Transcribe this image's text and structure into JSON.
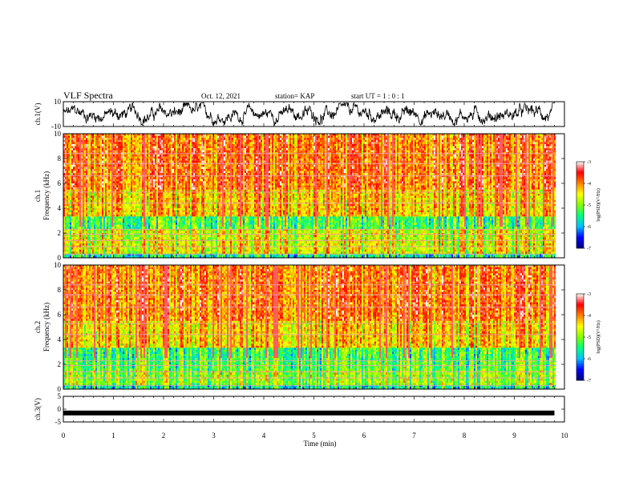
{
  "header": {
    "title": "VLF Spectra",
    "date": "Oct. 12, 2021",
    "station": "station= KAP",
    "start_ut": "start UT =  1 : 0  : 1"
  },
  "chart_data": [
    {
      "type": "line",
      "panel": "ch1-waveform",
      "ylabel": "ch.1(V)",
      "ylim": [
        -10,
        10
      ],
      "yticks": [
        "10",
        "-10"
      ],
      "xlim": [
        0,
        10
      ],
      "data_extent_min": [
        0,
        9.8
      ],
      "color": "#000000"
    },
    {
      "type": "heatmap",
      "panel": "ch1-spectrogram",
      "ylabel": "ch.1\nFrequency (kHz)",
      "ylim": [
        0,
        10
      ],
      "yticks": [
        "0",
        "2",
        "4",
        "6",
        "8",
        "10"
      ],
      "xlim": [
        0,
        10
      ],
      "data_extent_min": [
        0,
        9.8
      ],
      "colorbar": {
        "label": "log(PSD)(V²/Hz)",
        "ticks": [
          "-3",
          "-4",
          "-5",
          "-6",
          "-7"
        ],
        "range": [
          -7,
          -3
        ]
      }
    },
    {
      "type": "heatmap",
      "panel": "ch2-spectrogram",
      "ylabel": "ch.2\nFrequency (kHz)",
      "ylim": [
        0,
        10
      ],
      "yticks": [
        "0",
        "2",
        "4",
        "6",
        "8",
        "10"
      ],
      "xlim": [
        0,
        10
      ],
      "data_extent_min": [
        0,
        9.8
      ],
      "colorbar": {
        "label": "log(PSD)(V²/Hz)",
        "ticks": [
          "-3",
          "-4",
          "-5",
          "-6",
          "-7"
        ],
        "range": [
          -7,
          -3
        ]
      }
    },
    {
      "type": "line",
      "panel": "ch3-waveform",
      "ylabel": "ch.3(V)",
      "ylim": [
        -5,
        5
      ],
      "yticks": [
        "5",
        "0",
        "-5"
      ],
      "xlim": [
        0,
        10
      ],
      "data_extent_min": [
        0,
        9.8
      ],
      "level_v": -1.5,
      "color": "#000000"
    }
  ],
  "xaxis": {
    "label": "Time (min)",
    "ticks": [
      "0",
      "1",
      "2",
      "3",
      "4",
      "5",
      "6",
      "7",
      "8",
      "9",
      "10"
    ]
  },
  "colors": {
    "scale": [
      "#000080",
      "#0000ff",
      "#00c0ff",
      "#00ff80",
      "#80ff00",
      "#ffff00",
      "#ff8000",
      "#ff0000",
      "#ffffff"
    ]
  }
}
